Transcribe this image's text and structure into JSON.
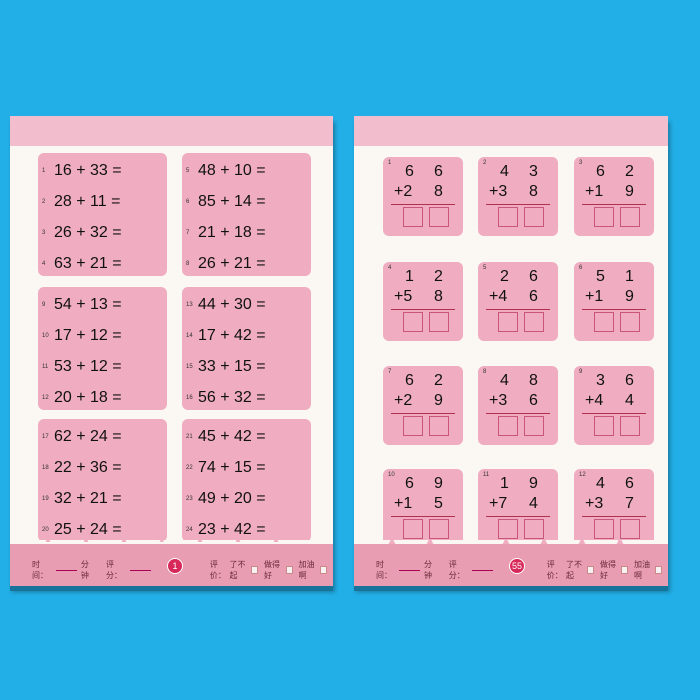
{
  "colors": {
    "background": "#22aee6",
    "pink": "#f0adc2",
    "accent": "#d8285a"
  },
  "left_page": {
    "groups": [
      [
        {
          "n": "1",
          "q": "16 + 33 ="
        },
        {
          "n": "2",
          "q": "28 + 11 ="
        },
        {
          "n": "3",
          "q": "26 + 32 ="
        },
        {
          "n": "4",
          "q": "63 + 21 ="
        }
      ],
      [
        {
          "n": "5",
          "q": "48 + 10 ="
        },
        {
          "n": "6",
          "q": "85 + 14 ="
        },
        {
          "n": "7",
          "q": "21 + 18 ="
        },
        {
          "n": "8",
          "q": "26 + 21 ="
        }
      ],
      [
        {
          "n": "9",
          "q": "54 + 13 ="
        },
        {
          "n": "10",
          "q": "17 + 12 ="
        },
        {
          "n": "11",
          "q": "53 + 12 ="
        },
        {
          "n": "12",
          "q": "20 + 18 ="
        }
      ],
      [
        {
          "n": "13",
          "q": "44 + 30 ="
        },
        {
          "n": "14",
          "q": "17 + 42 ="
        },
        {
          "n": "15",
          "q": "33 + 15 ="
        },
        {
          "n": "16",
          "q": "56 + 32 ="
        }
      ],
      [
        {
          "n": "17",
          "q": "62 + 24 ="
        },
        {
          "n": "18",
          "q": "22 + 36 ="
        },
        {
          "n": "19",
          "q": "32 + 21 ="
        },
        {
          "n": "20",
          "q": "25 + 24 ="
        }
      ],
      [
        {
          "n": "21",
          "q": "45 + 42 ="
        },
        {
          "n": "22",
          "q": "74 + 15 ="
        },
        {
          "n": "23",
          "q": "49 + 20 ="
        },
        {
          "n": "24",
          "q": "23 + 42 ="
        }
      ]
    ],
    "page_number": "1"
  },
  "right_page": {
    "cards": [
      {
        "n": "1",
        "a": [
          "6",
          "6"
        ],
        "b": [
          "+2",
          "8"
        ]
      },
      {
        "n": "2",
        "a": [
          "4",
          "3"
        ],
        "b": [
          "+3",
          "8"
        ]
      },
      {
        "n": "3",
        "a": [
          "6",
          "2"
        ],
        "b": [
          "+1",
          "9"
        ]
      },
      {
        "n": "4",
        "a": [
          "1",
          "2"
        ],
        "b": [
          "+5",
          "8"
        ]
      },
      {
        "n": "5",
        "a": [
          "2",
          "6"
        ],
        "b": [
          "+4",
          "6"
        ]
      },
      {
        "n": "6",
        "a": [
          "5",
          "1"
        ],
        "b": [
          "+1",
          "9"
        ]
      },
      {
        "n": "7",
        "a": [
          "6",
          "2"
        ],
        "b": [
          "+2",
          "9"
        ]
      },
      {
        "n": "8",
        "a": [
          "4",
          "8"
        ],
        "b": [
          "+3",
          "6"
        ]
      },
      {
        "n": "9",
        "a": [
          "3",
          "6"
        ],
        "b": [
          "+4",
          "4"
        ]
      },
      {
        "n": "10",
        "a": [
          "6",
          "9"
        ],
        "b": [
          "+1",
          "5"
        ]
      },
      {
        "n": "11",
        "a": [
          "1",
          "9"
        ],
        "b": [
          "+7",
          "4"
        ]
      },
      {
        "n": "12",
        "a": [
          "4",
          "6"
        ],
        "b": [
          "+3",
          "7"
        ]
      }
    ],
    "page_number": "55"
  },
  "footer": {
    "time_label": "时间：",
    "minutes": "分钟",
    "score_label": "评分：",
    "rating_label": "评价：",
    "ratings": [
      "了不起",
      "做得好",
      "加油啊"
    ]
  }
}
